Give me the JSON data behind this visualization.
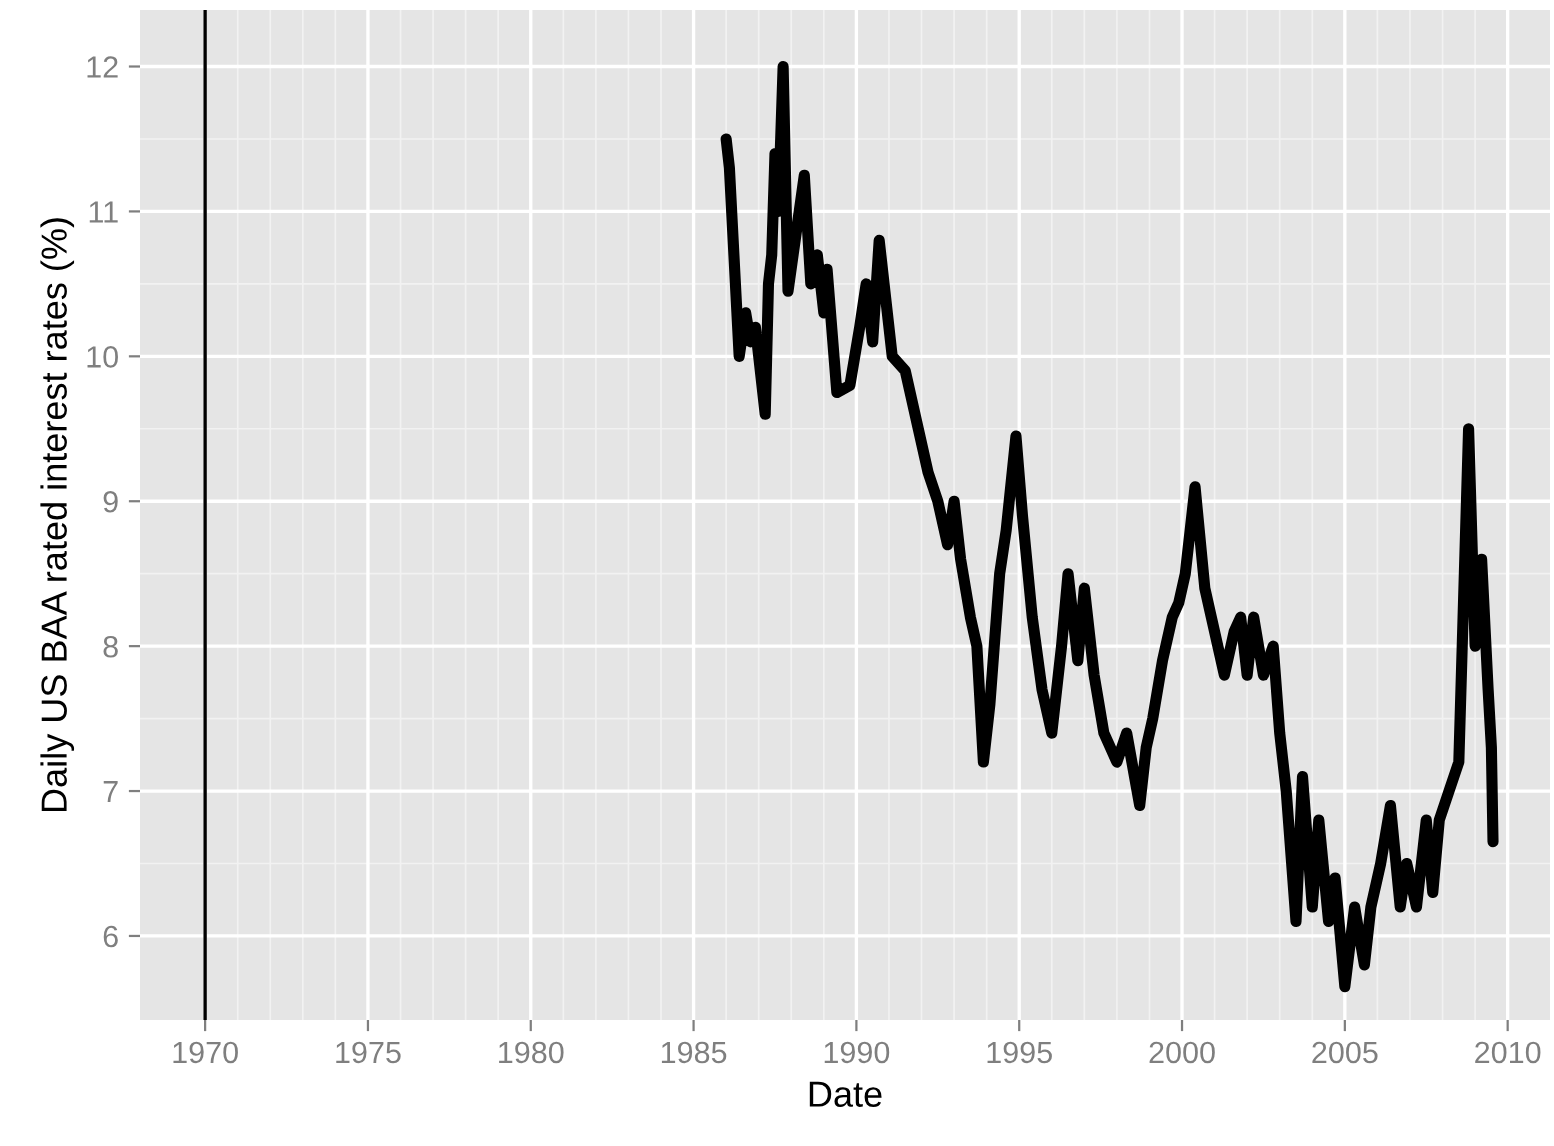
{
  "chart_data": {
    "type": "line",
    "xlabel": "Date",
    "ylabel": "Daily US BAA rated interest rates (%)",
    "xlim": [
      1968.0,
      2011.3
    ],
    "ylim": [
      5.42,
      12.39
    ],
    "xticks": [
      1970,
      1975,
      1980,
      1985,
      1990,
      1995,
      2000,
      2005,
      2010
    ],
    "yticks": [
      6,
      7,
      8,
      9,
      10,
      11,
      12
    ],
    "grid": true,
    "line_style": "solid",
    "marker": "none",
    "ref_lines": [
      {
        "axis": "x",
        "value": 1970,
        "color": "#000000",
        "line_style": "solid"
      }
    ],
    "series": [
      {
        "color": "#000000",
        "x": [
          1986.0,
          1986.1,
          1986.4,
          1986.6,
          1986.75,
          1986.9,
          1987.2,
          1987.3,
          1987.4,
          1987.5,
          1987.6,
          1987.75,
          1987.9,
          1988.4,
          1988.6,
          1988.8,
          1989.0,
          1989.1,
          1989.4,
          1989.8,
          1990.1,
          1990.3,
          1990.5,
          1990.7,
          1990.9,
          1991.1,
          1991.5,
          1991.9,
          1992.2,
          1992.5,
          1992.8,
          1993.0,
          1993.2,
          1993.5,
          1993.7,
          1993.9,
          1994.1,
          1994.4,
          1994.6,
          1994.9,
          1995.1,
          1995.4,
          1995.7,
          1996.0,
          1996.3,
          1996.5,
          1996.8,
          1997.0,
          1997.3,
          1997.6,
          1998.0,
          1998.3,
          1998.7,
          1998.9,
          1999.1,
          1999.4,
          1999.7,
          1999.9,
          2000.1,
          2000.4,
          2000.7,
          2000.9,
          2001.3,
          2001.6,
          2001.8,
          2002.0,
          2002.2,
          2002.5,
          2002.8,
          2003.0,
          2003.2,
          2003.5,
          2003.7,
          2004.0,
          2004.2,
          2004.5,
          2004.7,
          2005.0,
          2005.3,
          2005.6,
          2005.8,
          2006.1,
          2006.4,
          2006.7,
          2006.9,
          2007.2,
          2007.5,
          2007.7,
          2007.9,
          2008.2,
          2008.5,
          2008.8,
          2009.0,
          2009.2,
          2009.4,
          2009.5,
          2009.55
        ],
        "values": [
          11.5,
          11.3,
          10.0,
          10.3,
          10.1,
          10.2,
          9.6,
          10.5,
          10.7,
          11.4,
          11.0,
          12.0,
          10.45,
          11.25,
          10.5,
          10.7,
          10.3,
          10.6,
          9.75,
          9.8,
          10.2,
          10.5,
          10.1,
          10.8,
          10.4,
          10.0,
          9.9,
          9.5,
          9.2,
          9.0,
          8.7,
          9.0,
          8.6,
          8.2,
          8.0,
          7.2,
          7.6,
          8.5,
          8.8,
          9.45,
          8.9,
          8.2,
          7.7,
          7.4,
          8.0,
          8.5,
          7.9,
          8.4,
          7.8,
          7.4,
          7.2,
          7.4,
          6.9,
          7.3,
          7.5,
          7.9,
          8.2,
          8.3,
          8.5,
          9.1,
          8.4,
          8.2,
          7.8,
          8.1,
          8.2,
          7.8,
          8.2,
          7.8,
          8.0,
          7.4,
          7.0,
          6.1,
          7.1,
          6.2,
          6.8,
          6.1,
          6.4,
          5.65,
          6.2,
          5.8,
          6.2,
          6.5,
          6.9,
          6.2,
          6.5,
          6.2,
          6.8,
          6.3,
          6.8,
          7.0,
          7.2,
          9.5,
          8.0,
          8.6,
          7.7,
          7.3,
          6.65
        ]
      }
    ]
  }
}
